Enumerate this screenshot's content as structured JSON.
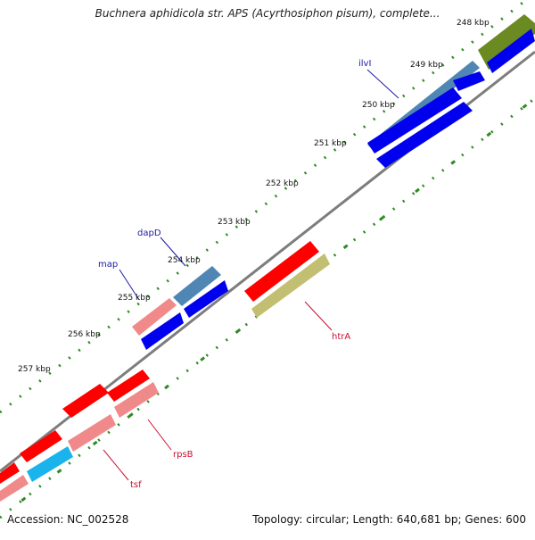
{
  "title": "Buchnera aphidicola str. APS (Acyrthosiphon pisum), complete...",
  "footer": {
    "accession": "Accession: NC_002528",
    "summary": "Topology: circular; Length: 640,681 bp; Genes: 600"
  },
  "ticks": [
    "248 kbp",
    "249 kbp",
    "250 kbp",
    "251 kbp",
    "252 kbp",
    "253 kbp",
    "254 kbp",
    "255 kbp",
    "256 kbp",
    "257 kbp"
  ],
  "gene_labels": {
    "ilvI": "ilvI",
    "dapD": "dapD",
    "map": "map",
    "htrA": "htrA",
    "rpsB": "rpsB",
    "tsf": "tsf"
  },
  "colors": {
    "backbone": "#7d7d7d",
    "tick_dots": "#2e8b22",
    "label_blue": "#1a1aa6",
    "label_red": "#c8102e",
    "feature_red": "#ff0000",
    "feature_pink": "#f08a8a",
    "feature_blue": "#0000ee",
    "feature_steelblue": "#4f86b3",
    "feature_olive": "#6b8a22",
    "feature_khaki": "#c2bf72",
    "feature_cyan": "#1ab3ec"
  }
}
